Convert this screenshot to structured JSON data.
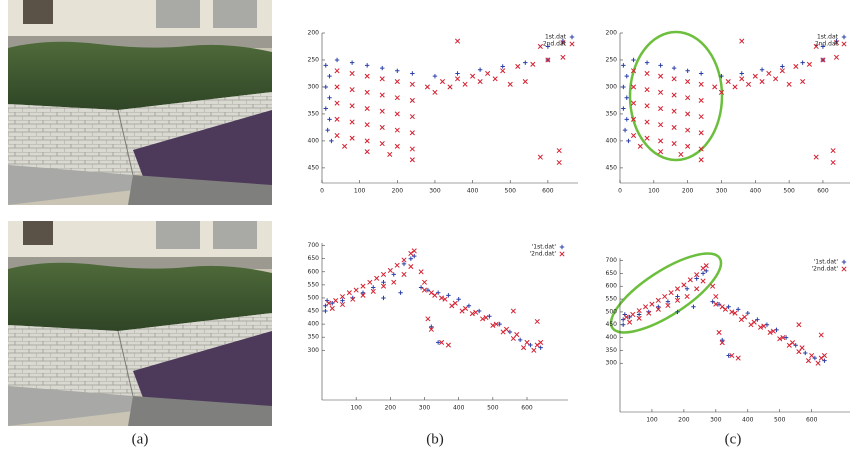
{
  "captions": [
    "(a)",
    "(b)",
    "(c)"
  ],
  "chart_data": [
    {
      "type": "scatter",
      "legend": "upper right",
      "xlim": [
        0,
        680
      ],
      "ylim": [
        478,
        200
      ],
      "xticks": [
        0,
        100,
        200,
        300,
        400,
        500,
        600
      ],
      "yticks": [
        200,
        250,
        300,
        350,
        400,
        450
      ],
      "series": [
        {
          "name": "1st.dat",
          "color": "#2a3fa8",
          "marker": "plus",
          "x": [
            10,
            20,
            10,
            20,
            10,
            20,
            15,
            25,
            40,
            80,
            120,
            160,
            200,
            240,
            300,
            360,
            420,
            480,
            540,
            600,
            640,
            600
          ],
          "values": [
            260,
            280,
            300,
            320,
            340,
            360,
            380,
            400,
            250,
            255,
            260,
            265,
            270,
            275,
            280,
            275,
            268,
            262,
            255,
            250,
            215,
            225
          ]
        },
        {
          "name": "2nd.dat",
          "color": "#d42030",
          "marker": "cross",
          "x": [
            40,
            80,
            120,
            160,
            200,
            240,
            40,
            80,
            120,
            160,
            200,
            240,
            40,
            80,
            120,
            160,
            200,
            240,
            40,
            80,
            120,
            160,
            200,
            240,
            40,
            80,
            120,
            160,
            200,
            240,
            60,
            120,
            180,
            240,
            280,
            320,
            360,
            400,
            440,
            480,
            520,
            560,
            600,
            640,
            300,
            340,
            380,
            420,
            460,
            500,
            540,
            360,
            580,
            640,
            580,
            630,
            630
          ],
          "values": [
            270,
            275,
            280,
            285,
            290,
            295,
            300,
            305,
            310,
            315,
            320,
            325,
            330,
            335,
            340,
            345,
            350,
            355,
            360,
            365,
            370,
            375,
            380,
            385,
            390,
            395,
            400,
            405,
            410,
            415,
            410,
            420,
            425,
            435,
            300,
            290,
            285,
            280,
            275,
            270,
            262,
            258,
            250,
            245,
            310,
            300,
            295,
            290,
            285,
            295,
            290,
            215,
            225,
            218,
            430,
            418,
            440
          ]
        }
      ]
    },
    {
      "type": "scatter",
      "legend": "upper right",
      "xlim": [
        0,
        720
      ],
      "ylim": [
        110,
        710
      ],
      "xticks": [
        100,
        200,
        300,
        400,
        500,
        600
      ],
      "yticks": [
        300,
        350,
        400,
        450,
        500,
        550,
        600,
        650,
        700
      ],
      "series": [
        {
          "name": "'1st.dat'",
          "color": "#2a3fa8",
          "marker": "plus",
          "x": [
            10,
            10,
            15,
            30,
            60,
            90,
            120,
            150,
            180,
            210,
            240,
            260,
            270,
            180,
            230,
            290,
            310,
            340,
            370,
            400,
            430,
            460,
            490,
            520,
            550,
            580,
            610,
            640,
            320,
            340
          ],
          "values": [
            450,
            470,
            490,
            480,
            490,
            500,
            520,
            540,
            560,
            590,
            630,
            650,
            660,
            500,
            520,
            540,
            530,
            520,
            510,
            495,
            470,
            450,
            430,
            400,
            370,
            340,
            320,
            310,
            390,
            330
          ]
        },
        {
          "name": "'2nd.dat'",
          "color": "#d42030",
          "marker": "cross",
          "x": [
            20,
            40,
            60,
            80,
            100,
            120,
            140,
            160,
            180,
            200,
            220,
            240,
            260,
            270,
            30,
            60,
            90,
            120,
            150,
            180,
            210,
            240,
            260,
            300,
            330,
            360,
            390,
            420,
            450,
            480,
            510,
            540,
            570,
            600,
            630,
            320,
            350,
            380,
            410,
            440,
            470,
            500,
            530,
            560,
            590,
            620,
            310,
            320,
            350,
            370,
            290,
            560,
            630,
            640,
            300
          ],
          "values": [
            480,
            490,
            505,
            520,
            530,
            545,
            560,
            575,
            590,
            605,
            625,
            645,
            670,
            680,
            460,
            475,
            495,
            510,
            525,
            545,
            560,
            590,
            620,
            530,
            510,
            495,
            480,
            460,
            445,
            425,
            400,
            380,
            360,
            330,
            320,
            520,
            500,
            470,
            450,
            440,
            420,
            395,
            370,
            345,
            310,
            300,
            420,
            380,
            330,
            320,
            600,
            450,
            410,
            330,
            560
          ]
        }
      ]
    }
  ]
}
